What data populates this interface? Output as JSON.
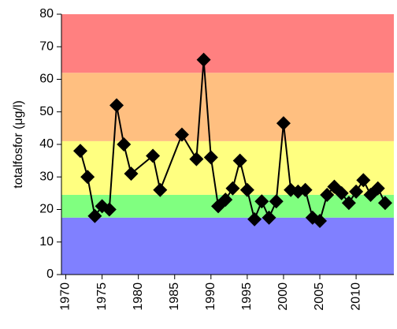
{
  "chart_data": {
    "type": "line",
    "y_label": "totalfosfor (μg/l)",
    "x": [
      1972,
      1973,
      1974,
      1975,
      1976,
      1977,
      1978,
      1979,
      1982,
      1983,
      1986,
      1988,
      1989,
      1990,
      1991,
      1992,
      1993,
      1994,
      1995,
      1996,
      1997,
      1998,
      1999,
      2000,
      2001,
      2002,
      2003,
      2004,
      2005,
      2006,
      2007,
      2008,
      2009,
      2010,
      2011,
      2012,
      2013,
      2014
    ],
    "series": [
      {
        "color": "#000000",
        "values": [
          38,
          30,
          18,
          21,
          20,
          52,
          40,
          31,
          36.5,
          26,
          43,
          35.5,
          66,
          36,
          21,
          23,
          26.5,
          35,
          26,
          17,
          22.5,
          17.5,
          22.5,
          46.5,
          26,
          25.5,
          26,
          17.5,
          16.5,
          24.5,
          27,
          25,
          22,
          25.5,
          29,
          24.5,
          26.5,
          22
        ]
      }
    ],
    "xlim": [
      1969.4,
      2015.2
    ],
    "xticks": [
      1970,
      1975,
      1980,
      1985,
      1990,
      1995,
      2000,
      2005,
      2010
    ],
    "ylim": [
      0,
      80
    ],
    "yticks": [
      0,
      10,
      20,
      30,
      40,
      50,
      60,
      70,
      80
    ],
    "bands": [
      {
        "from": 0,
        "to": 17.5,
        "color": "#8080ff"
      },
      {
        "from": 17.5,
        "to": 24.5,
        "color": "#80ff80"
      },
      {
        "from": 24.5,
        "to": 41,
        "color": "#ffff80"
      },
      {
        "from": 41,
        "to": 62,
        "color": "#ffbf80"
      },
      {
        "from": 62,
        "to": 80,
        "color": "#ff8080"
      }
    ]
  }
}
